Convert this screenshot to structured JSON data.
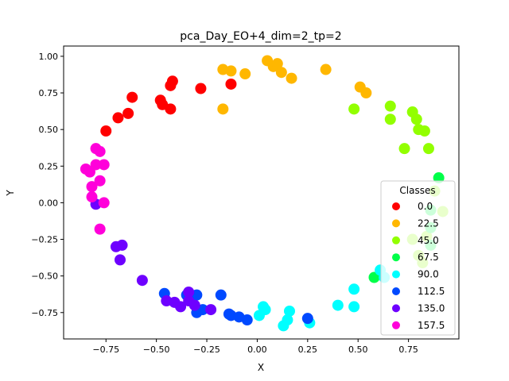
{
  "chart_data": {
    "type": "scatter",
    "title": "pca_Day_EO+4_dim=2_tp=2",
    "xlabel": "X",
    "ylabel": "Y",
    "xlim": [
      -0.96,
      1.0
    ],
    "ylim": [
      -0.93,
      1.07
    ],
    "xticks": [
      -0.75,
      -0.5,
      -0.25,
      0.0,
      0.25,
      0.5,
      0.75
    ],
    "xtick_labels": [
      "−0.75",
      "−0.50",
      "−0.25",
      "0.00",
      "0.25",
      "0.50",
      "0.75"
    ],
    "yticks": [
      -0.75,
      -0.5,
      -0.25,
      0.0,
      0.25,
      0.5,
      0.75,
      1.0
    ],
    "ytick_labels": [
      "−0.75",
      "−0.50",
      "−0.25",
      "0.00",
      "0.25",
      "0.50",
      "0.75",
      "1.00"
    ],
    "grid": false,
    "legend": {
      "title": "Classes",
      "placement": "lower-right"
    },
    "series": [
      {
        "name": "0.0",
        "color": "#ff0000",
        "points": [
          [
            -0.75,
            0.49
          ],
          [
            -0.69,
            0.58
          ],
          [
            -0.64,
            0.61
          ],
          [
            -0.62,
            0.72
          ],
          [
            -0.48,
            0.7
          ],
          [
            -0.47,
            0.67
          ],
          [
            -0.43,
            0.64
          ],
          [
            -0.43,
            0.8
          ],
          [
            -0.42,
            0.83
          ],
          [
            -0.28,
            0.78
          ],
          [
            -0.13,
            0.81
          ]
        ]
      },
      {
        "name": "22.5",
        "color": "#ffb700",
        "points": [
          [
            -0.17,
            0.91
          ],
          [
            -0.17,
            0.64
          ],
          [
            -0.13,
            0.9
          ],
          [
            -0.06,
            0.88
          ],
          [
            0.05,
            0.97
          ],
          [
            0.08,
            0.93
          ],
          [
            0.1,
            0.95
          ],
          [
            0.12,
            0.89
          ],
          [
            0.17,
            0.85
          ],
          [
            0.34,
            0.91
          ],
          [
            0.51,
            0.79
          ],
          [
            0.54,
            0.75
          ]
        ]
      },
      {
        "name": "45.0",
        "color": "#92ff00",
        "points": [
          [
            0.48,
            0.64
          ],
          [
            0.66,
            0.66
          ],
          [
            0.66,
            0.57
          ],
          [
            0.73,
            0.37
          ],
          [
            0.77,
            0.62
          ],
          [
            0.79,
            0.57
          ],
          [
            0.8,
            0.5
          ],
          [
            0.83,
            0.49
          ],
          [
            0.85,
            0.37
          ],
          [
            0.88,
            0.08
          ],
          [
            0.92,
            -0.06
          ],
          [
            0.84,
            -0.23
          ],
          [
            0.77,
            -0.25
          ],
          [
            0.8,
            -0.36
          ],
          [
            0.82,
            -0.41
          ]
        ]
      },
      {
        "name": "67.5",
        "color": "#00ff49",
        "points": [
          [
            0.9,
            0.17
          ],
          [
            0.86,
            -0.05
          ],
          [
            0.86,
            -0.17
          ],
          [
            0.86,
            -0.29
          ],
          [
            0.58,
            -0.51
          ]
        ]
      },
      {
        "name": "90.0",
        "color": "#00ffff",
        "points": [
          [
            0.61,
            -0.46
          ],
          [
            0.63,
            -0.51
          ],
          [
            0.48,
            -0.59
          ],
          [
            0.48,
            -0.71
          ],
          [
            0.4,
            -0.7
          ],
          [
            0.26,
            -0.82
          ],
          [
            0.16,
            -0.74
          ],
          [
            0.15,
            -0.8
          ],
          [
            0.13,
            -0.84
          ],
          [
            0.04,
            -0.73
          ],
          [
            0.03,
            -0.71
          ],
          [
            0.01,
            -0.77
          ]
        ]
      },
      {
        "name": "112.5",
        "color": "#0049ff",
        "points": [
          [
            -0.46,
            -0.62
          ],
          [
            -0.35,
            -0.63
          ],
          [
            -0.3,
            -0.63
          ],
          [
            -0.3,
            -0.75
          ],
          [
            -0.27,
            -0.73
          ],
          [
            -0.18,
            -0.63
          ],
          [
            -0.14,
            -0.76
          ],
          [
            -0.13,
            -0.77
          ],
          [
            -0.09,
            -0.78
          ],
          [
            -0.05,
            -0.8
          ],
          [
            0.25,
            -0.79
          ]
        ]
      },
      {
        "name": "135.0",
        "color": "#6e00ff",
        "points": [
          [
            -0.8,
            -0.01
          ],
          [
            -0.7,
            -0.3
          ],
          [
            -0.67,
            -0.29
          ],
          [
            -0.68,
            -0.39
          ],
          [
            -0.57,
            -0.53
          ],
          [
            -0.45,
            -0.67
          ],
          [
            -0.41,
            -0.68
          ],
          [
            -0.38,
            -0.71
          ],
          [
            -0.34,
            -0.61
          ],
          [
            -0.34,
            -0.67
          ],
          [
            -0.31,
            -0.7
          ],
          [
            -0.23,
            -0.73
          ]
        ]
      },
      {
        "name": "157.5",
        "color": "#ff00da",
        "points": [
          [
            -0.85,
            0.23
          ],
          [
            -0.83,
            0.21
          ],
          [
            -0.82,
            0.11
          ],
          [
            -0.82,
            0.04
          ],
          [
            -0.8,
            0.37
          ],
          [
            -0.8,
            0.26
          ],
          [
            -0.78,
            0.35
          ],
          [
            -0.78,
            0.15
          ],
          [
            -0.76,
            0.26
          ],
          [
            -0.76,
            0.0
          ],
          [
            -0.78,
            -0.18
          ]
        ]
      }
    ]
  }
}
